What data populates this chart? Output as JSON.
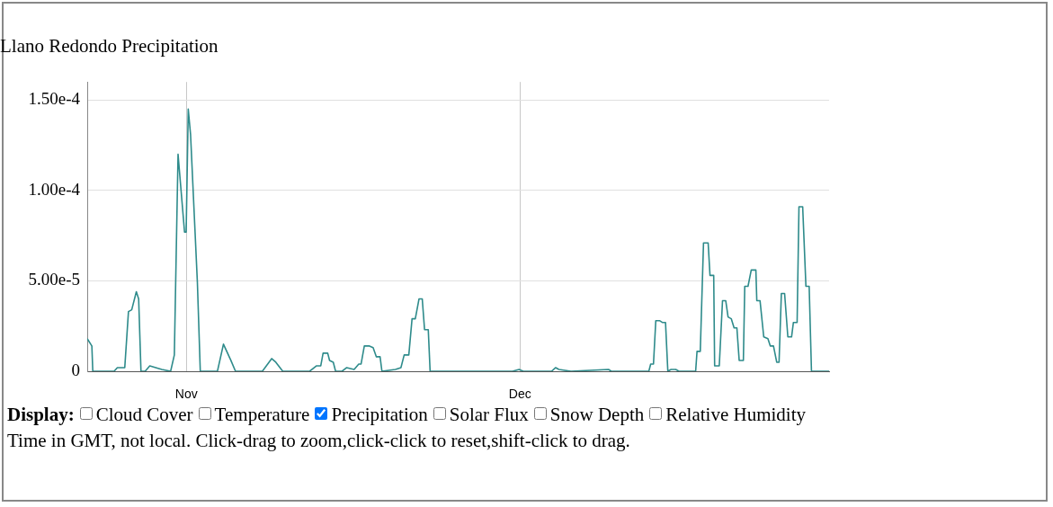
{
  "chart_data": {
    "type": "line",
    "title": "Llano Redondo Precipitation",
    "annotations": [
      "Display:",
      "Cloud Cover",
      "Temperature",
      "Precipitation",
      "Solar Flux",
      "Snow Depth",
      "Relative Humidity",
      "Time in GMT, not local. Click-drag to zoom,click-click to reset,shift-click to drag."
    ],
    "series": [
      {
        "color": "#2e8b8b",
        "x": [
          "--10-23T02:00",
          "--10-23T12:00",
          "--10-23T14:00",
          "--10-25T12:00",
          "--10-25T19:00",
          "--10-26T05:00",
          "--10-26T11:00",
          "--10-26T19:00",
          "--10-27T02:00",
          "--10-27T12:00",
          "--10-27T17:00",
          "--10-27T22:00",
          "--10-28T07:00",
          "--10-28T17:00",
          "--10-29T19:00",
          "--10-30T14:00",
          "--10-30T22:00",
          "--10-31T06:00",
          "--10-31T20:00",
          "--10-31T23:30",
          "--11-01T04:00",
          "--11-01T09:00",
          "--11-01T23:45",
          "--11-02T06:00",
          "--11-03T19:00",
          "--11-04T08:00",
          "--11-05T00:00",
          "--11-05T10:00",
          "--11-07T20:00",
          "--11-08T16:00",
          "--11-09T01:00",
          "--11-09T16:00",
          "--11-12T02:00",
          "--11-12T17:00",
          "--11-13T02:00",
          "--11-13T07:00",
          "--11-13T17:00",
          "--11-13T21:00",
          "--11-14T05:00",
          "--11-14T10:00",
          "--11-15T00:00",
          "--11-15T10:00",
          "--11-16T02:00",
          "--11-16T12:00",
          "--11-16T17:00",
          "--11-17T00:00",
          "--11-17T10:00",
          "--11-17T19:00",
          "--11-18T02:00",
          "--11-18T10:00",
          "--11-18T14:00",
          "--11-19T19:00",
          "--11-20T07:00",
          "--11-20T14:00",
          "--11-21T00:00",
          "--11-21T07:00",
          "--11-21T14:00",
          "--11-21T22:00",
          "--11-22T05:00",
          "--11-22T10:00",
          "--11-22T18:00",
          "--11-22T22:00",
          "--11-30T08:00",
          "--11-30T22:00",
          "--12-01T07:00",
          "--12-03T20:00",
          "--12-04T05:00",
          "--12-04T12:00",
          "--12-05T14:00",
          "--12-08T23:00",
          "--12-09T05:00",
          "--12-12T14:00",
          "--12-12T18:00",
          "--12-13T00:00",
          "--12-13T05:00",
          "--12-13T13:00",
          "--12-13T19:00",
          "--12-14T02:00",
          "--12-14T07:00",
          "--12-14T14:00",
          "--12-15T00:00",
          "--12-15T07:00",
          "--12-16T19:00",
          "--12-16T22:00",
          "--12-17T05:00",
          "--12-17T12:00",
          "--12-17T22:00",
          "--12-18T02:00",
          "--12-18T10:00",
          "--12-18T12:00",
          "--12-18T22:00",
          "--12-19T05:00",
          "--12-19T12:00",
          "--12-19T17:00",
          "--12-20T00:00",
          "--12-20T06:00",
          "--12-20T12:00",
          "--12-20T17:00",
          "--12-21T02:00",
          "--12-21T05:00",
          "--12-21T12:00",
          "--12-21T19:00",
          "--12-22T05:00",
          "--12-22T07:00",
          "--12-22T14:00",
          "--12-22T22:00",
          "--12-23T07:00",
          "--12-23T12:00",
          "--12-23T19:00",
          "--12-24T02:00",
          "--12-24T07:00",
          "--12-24T12:00",
          "--12-24T19:00",
          "--12-25T02:00",
          "--12-25T10:00",
          "--12-25T14:00",
          "--12-25T22:00",
          "--12-26T02:00",
          "--12-26T10:00",
          "--12-26T17:00",
          "--12-27T00:00",
          "--12-27T05:00",
          "--12-28T19:00"
        ],
        "values": [
          1.8e-05,
          1.4e-05,
          0,
          0,
          2e-06,
          2e-06,
          2e-06,
          3.3e-05,
          3.4e-05,
          4.4e-05,
          4e-05,
          0,
          0,
          3e-06,
          1e-06,
          0,
          9e-06,
          0.00012,
          7.7e-05,
          7.7e-05,
          0.000145,
          0.000131,
          4.9e-05,
          0,
          0,
          1.5e-05,
          6e-06,
          0,
          0,
          7e-06,
          5e-06,
          0,
          0,
          3e-06,
          3e-06,
          1e-05,
          1e-05,
          6e-06,
          5e-06,
          0,
          0,
          2e-06,
          1e-06,
          4e-06,
          4e-06,
          1.4e-05,
          1.4e-05,
          1.3e-05,
          8e-06,
          8e-06,
          0,
          1e-06,
          2e-06,
          9e-06,
          9e-06,
          2.9e-05,
          2.9e-05,
          4e-05,
          4e-05,
          2.3e-05,
          2.3e-05,
          0,
          0,
          1e-06,
          0,
          0,
          2e-06,
          1e-06,
          0,
          1e-06,
          0,
          0,
          4e-06,
          4e-06,
          2.8e-05,
          2.8e-05,
          2.7e-05,
          2.7e-05,
          0,
          1e-06,
          1e-06,
          0,
          0,
          1.1e-05,
          1.1e-05,
          7.1e-05,
          7.1e-05,
          5.3e-05,
          5.3e-05,
          3e-06,
          3e-06,
          3.9e-05,
          3.9e-05,
          3e-05,
          2.9e-05,
          2.4e-05,
          2.4e-05,
          6e-06,
          6e-06,
          4.7e-05,
          4.7e-05,
          5.6e-05,
          5.6e-05,
          3.9e-05,
          3.9e-05,
          1.9e-05,
          1.8e-05,
          1.4e-05,
          1.4e-05,
          5e-06,
          5e-06,
          4.3e-05,
          4.3e-05,
          1.9e-05,
          1.9e-05,
          2.7e-05,
          2.7e-05,
          9.1e-05,
          9.1e-05,
          4.7e-05,
          4.7e-05,
          0,
          0
        ]
      }
    ],
    "xlim": [
      "--10-23T02:00",
      "--12-28T19:00"
    ],
    "xticks": [
      {
        "value": "--11-01",
        "label": "Nov"
      },
      {
        "value": "--12-01",
        "label": "Dec"
      }
    ],
    "ylim": [
      0,
      0.00016
    ],
    "yticks": [
      0,
      {
        "value": 5e-05,
        "label": "5.00e-5"
      },
      {
        "value": 0.0001,
        "label": "1.00e-4"
      },
      {
        "value": 0.00015,
        "label": "1.50e-4"
      }
    ],
    "grid": true,
    "legend": false,
    "marker": "none",
    "line_style": "solid"
  }
}
